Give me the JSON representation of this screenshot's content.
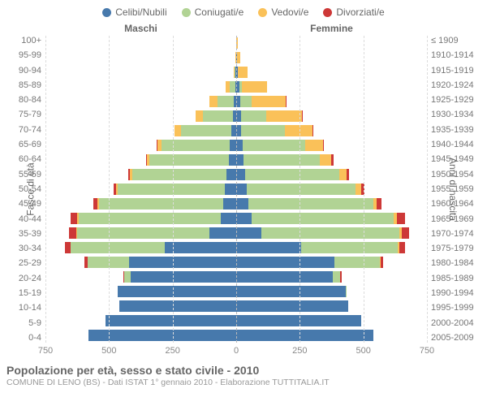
{
  "legend": [
    {
      "label": "Celibi/Nubili",
      "color": "#4779ac"
    },
    {
      "label": "Coniugati/e",
      "color": "#b1d394"
    },
    {
      "label": "Vedovi/e",
      "color": "#fac159"
    },
    {
      "label": "Divorziati/e",
      "color": "#cd3837"
    }
  ],
  "header_left": "Maschi",
  "header_right": "Femmine",
  "y_label_left": "Fasce di età",
  "y_label_right": "Anni di nascita",
  "x_ticks": [
    750,
    500,
    250,
    0,
    250,
    500,
    750
  ],
  "x_max": 750,
  "age_groups": [
    "100+",
    "95-99",
    "90-94",
    "85-89",
    "80-84",
    "75-79",
    "70-74",
    "65-69",
    "60-64",
    "55-59",
    "50-54",
    "45-49",
    "40-44",
    "35-39",
    "30-34",
    "25-29",
    "20-24",
    "15-19",
    "10-14",
    "5-9",
    "0-4"
  ],
  "birth_years": [
    "≤ 1909",
    "1910-1914",
    "1915-1919",
    "1920-1924",
    "1925-1929",
    "1930-1934",
    "1935-1939",
    "1940-1944",
    "1945-1949",
    "1950-1954",
    "1955-1959",
    "1960-1964",
    "1965-1969",
    "1970-1974",
    "1975-1979",
    "1980-1984",
    "1985-1989",
    "1990-1994",
    "1995-1999",
    "2000-2004",
    "2005-2009"
  ],
  "males": [
    [
      0,
      0,
      1,
      0
    ],
    [
      0,
      1,
      3,
      0
    ],
    [
      2,
      3,
      6,
      0
    ],
    [
      4,
      20,
      18,
      0
    ],
    [
      10,
      65,
      30,
      0
    ],
    [
      12,
      120,
      28,
      0
    ],
    [
      18,
      200,
      24,
      2
    ],
    [
      25,
      270,
      16,
      3
    ],
    [
      30,
      310,
      10,
      5
    ],
    [
      38,
      370,
      10,
      8
    ],
    [
      45,
      420,
      8,
      10
    ],
    [
      50,
      490,
      6,
      15
    ],
    [
      60,
      560,
      5,
      25
    ],
    [
      105,
      520,
      3,
      30
    ],
    [
      280,
      370,
      2,
      22
    ],
    [
      420,
      165,
      0,
      12
    ],
    [
      415,
      25,
      0,
      5
    ],
    [
      465,
      2,
      0,
      0
    ],
    [
      460,
      0,
      0,
      0
    ],
    [
      515,
      0,
      0,
      0
    ],
    [
      580,
      0,
      0,
      0
    ]
  ],
  "females": [
    [
      1,
      0,
      5,
      0
    ],
    [
      2,
      0,
      14,
      0
    ],
    [
      5,
      2,
      38,
      0
    ],
    [
      12,
      10,
      100,
      0
    ],
    [
      15,
      45,
      135,
      1
    ],
    [
      18,
      100,
      140,
      2
    ],
    [
      20,
      170,
      110,
      3
    ],
    [
      25,
      245,
      70,
      5
    ],
    [
      30,
      300,
      44,
      8
    ],
    [
      35,
      370,
      30,
      10
    ],
    [
      40,
      430,
      22,
      12
    ],
    [
      48,
      490,
      15,
      18
    ],
    [
      60,
      560,
      13,
      30
    ],
    [
      100,
      540,
      10,
      30
    ],
    [
      255,
      380,
      5,
      25
    ],
    [
      385,
      180,
      2,
      12
    ],
    [
      380,
      30,
      0,
      5
    ],
    [
      430,
      3,
      0,
      0
    ],
    [
      440,
      0,
      0,
      0
    ],
    [
      490,
      0,
      0,
      0
    ],
    [
      540,
      0,
      0,
      0
    ]
  ],
  "colors": {
    "single": "#4779ac",
    "married": "#b1d394",
    "widowed": "#fac159",
    "divorced": "#cd3837"
  },
  "title": "Popolazione per età, sesso e stato civile - 2010",
  "subtitle": "COMUNE DI LENO (BS) - Dati ISTAT 1° gennaio 2010 - Elaborazione TUTTITALIA.IT"
}
